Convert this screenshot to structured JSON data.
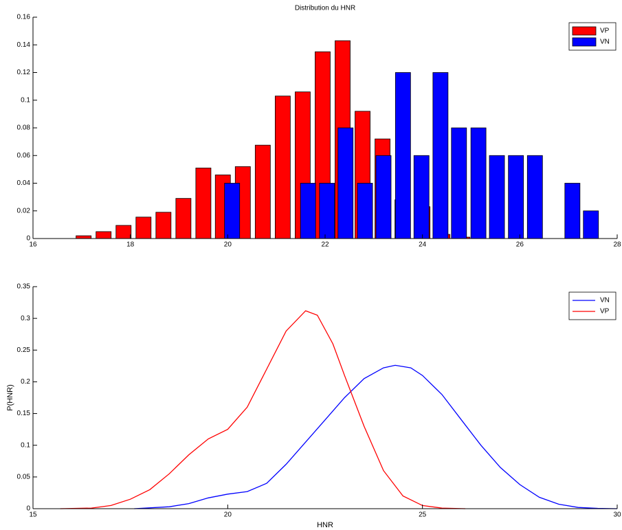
{
  "chart_data": [
    {
      "type": "bar",
      "title": "Distribution du HNR",
      "legend": "upper right",
      "xlim": [
        16,
        28
      ],
      "xticks": [
        16,
        18,
        20,
        22,
        24,
        26,
        28
      ],
      "ylim": [
        0,
        0.16
      ],
      "yticks": [
        0,
        0.02,
        0.04,
        0.06,
        0.08,
        0.1,
        0.12,
        0.14,
        0.16
      ],
      "series": [
        {
          "name": "VP",
          "color": "#ff0000",
          "x": [
            17.04,
            17.45,
            17.86,
            18.27,
            18.68,
            19.09,
            19.5,
            19.9,
            20.31,
            20.72,
            21.13,
            21.54,
            21.95,
            22.36,
            22.77,
            23.18,
            23.59,
            24.0,
            24.41,
            24.82
          ],
          "values": [
            0.002,
            0.005,
            0.0095,
            0.0155,
            0.019,
            0.029,
            0.051,
            0.046,
            0.052,
            0.0675,
            0.103,
            0.106,
            0.135,
            0.143,
            0.092,
            0.072,
            0.028,
            0.023,
            0.003,
            0.001
          ]
        },
        {
          "name": "VN",
          "color": "#0000ff",
          "x": [
            20.09,
            21.65,
            22.04,
            22.42,
            22.82,
            23.2,
            23.6,
            23.98,
            24.37,
            24.75,
            25.15,
            25.53,
            25.92,
            26.31,
            27.08,
            27.46
          ],
          "values": [
            0.04,
            0.04,
            0.04,
            0.08,
            0.04,
            0.06,
            0.12,
            0.06,
            0.12,
            0.08,
            0.08,
            0.06,
            0.06,
            0.06,
            0.04,
            0.02
          ]
        }
      ]
    },
    {
      "type": "line",
      "x_label": "HNR",
      "y_label": "P(HNR)",
      "legend": "upper right",
      "xlim": [
        15,
        30
      ],
      "xticks": [
        15,
        20,
        25,
        30
      ],
      "ylim": [
        0,
        0.35
      ],
      "yticks": [
        0,
        0.05,
        0.1,
        0.15,
        0.2,
        0.25,
        0.3,
        0.35
      ],
      "series": [
        {
          "name": "VN",
          "color": "#0000ff",
          "x": [
            17.6,
            18.5,
            19,
            19.5,
            20,
            20.5,
            21,
            21.5,
            22,
            22.5,
            23,
            23.5,
            24,
            24.3,
            24.7,
            25,
            25.5,
            26,
            26.5,
            27,
            27.5,
            28,
            28.5,
            29,
            29.5,
            30
          ],
          "values": [
            0,
            0.003,
            0.008,
            0.017,
            0.023,
            0.027,
            0.04,
            0.07,
            0.105,
            0.14,
            0.175,
            0.205,
            0.222,
            0.226,
            0.222,
            0.21,
            0.18,
            0.14,
            0.1,
            0.065,
            0.038,
            0.018,
            0.007,
            0.002,
            0.0005,
            0
          ]
        },
        {
          "name": "VP",
          "color": "#ff0000",
          "x": [
            15.7,
            16.5,
            17,
            17.5,
            18,
            18.5,
            19,
            19.5,
            20,
            20.5,
            21,
            21.5,
            22,
            22.3,
            22.7,
            23,
            23.5,
            24,
            24.5,
            25,
            25.5,
            26.1
          ],
          "values": [
            0,
            0.001,
            0.005,
            0.015,
            0.03,
            0.055,
            0.085,
            0.11,
            0.125,
            0.16,
            0.22,
            0.28,
            0.312,
            0.305,
            0.26,
            0.21,
            0.13,
            0.06,
            0.02,
            0.005,
            0.001,
            0
          ]
        }
      ]
    }
  ]
}
